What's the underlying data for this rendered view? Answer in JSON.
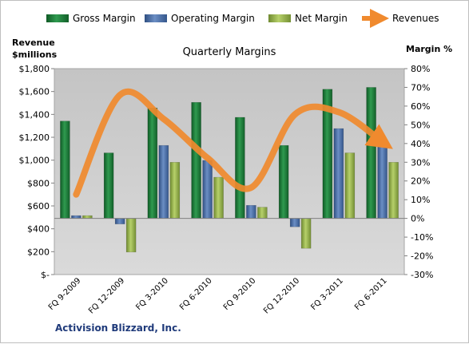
{
  "colors": {
    "gross": "#1e7f3a",
    "operating": "#4a70a8",
    "net": "#97b64c",
    "revenues": "#f08a2e",
    "plot_bg": "#cfcfcf"
  },
  "chart_data": {
    "type": "bar",
    "title": "Quarterly Margins",
    "company": "Activision Blizzard, Inc.",
    "left_axis": {
      "title_line1": "Revenue",
      "title_line2": "$millions",
      "min": 0,
      "max": 1800,
      "step": 200,
      "ticks": [
        "$-",
        "$200",
        "$400",
        "$600",
        "$800",
        "$1,000",
        "$1,200",
        "$1,400",
        "$1,600",
        "$1,800"
      ]
    },
    "right_axis": {
      "title": "Margin %",
      "min": -30,
      "max": 80,
      "step": 10,
      "ticks": [
        "-30%",
        "-20%",
        "-10%",
        "0%",
        "10%",
        "20%",
        "30%",
        "40%",
        "50%",
        "60%",
        "70%",
        "80%"
      ]
    },
    "grid": false,
    "legend": "top",
    "categories": [
      "FQ 9-2009",
      "FQ 12-2009",
      "FQ 3-2010",
      "FQ 6-2010",
      "FQ 9-2010",
      "FQ 12-2010",
      "FQ 3-2011",
      "FQ 6-2011"
    ],
    "series": [
      {
        "name": "Gross Margin",
        "axis": "right",
        "type": "bar",
        "values": [
          52,
          35,
          59,
          62,
          54,
          39,
          69,
          70
        ]
      },
      {
        "name": "Operating Margin",
        "axis": "right",
        "type": "bar",
        "values": [
          1.5,
          -3,
          39,
          31,
          7,
          -4.5,
          48,
          41
        ]
      },
      {
        "name": "Net Margin",
        "axis": "right",
        "type": "bar",
        "values": [
          1.5,
          -18,
          30,
          22,
          6,
          -16,
          35,
          30
        ]
      },
      {
        "name": "Revenues",
        "axis": "left",
        "type": "line",
        "values": [
          700,
          1570,
          1360,
          1020,
          760,
          1400,
          1420,
          1160
        ]
      }
    ]
  }
}
